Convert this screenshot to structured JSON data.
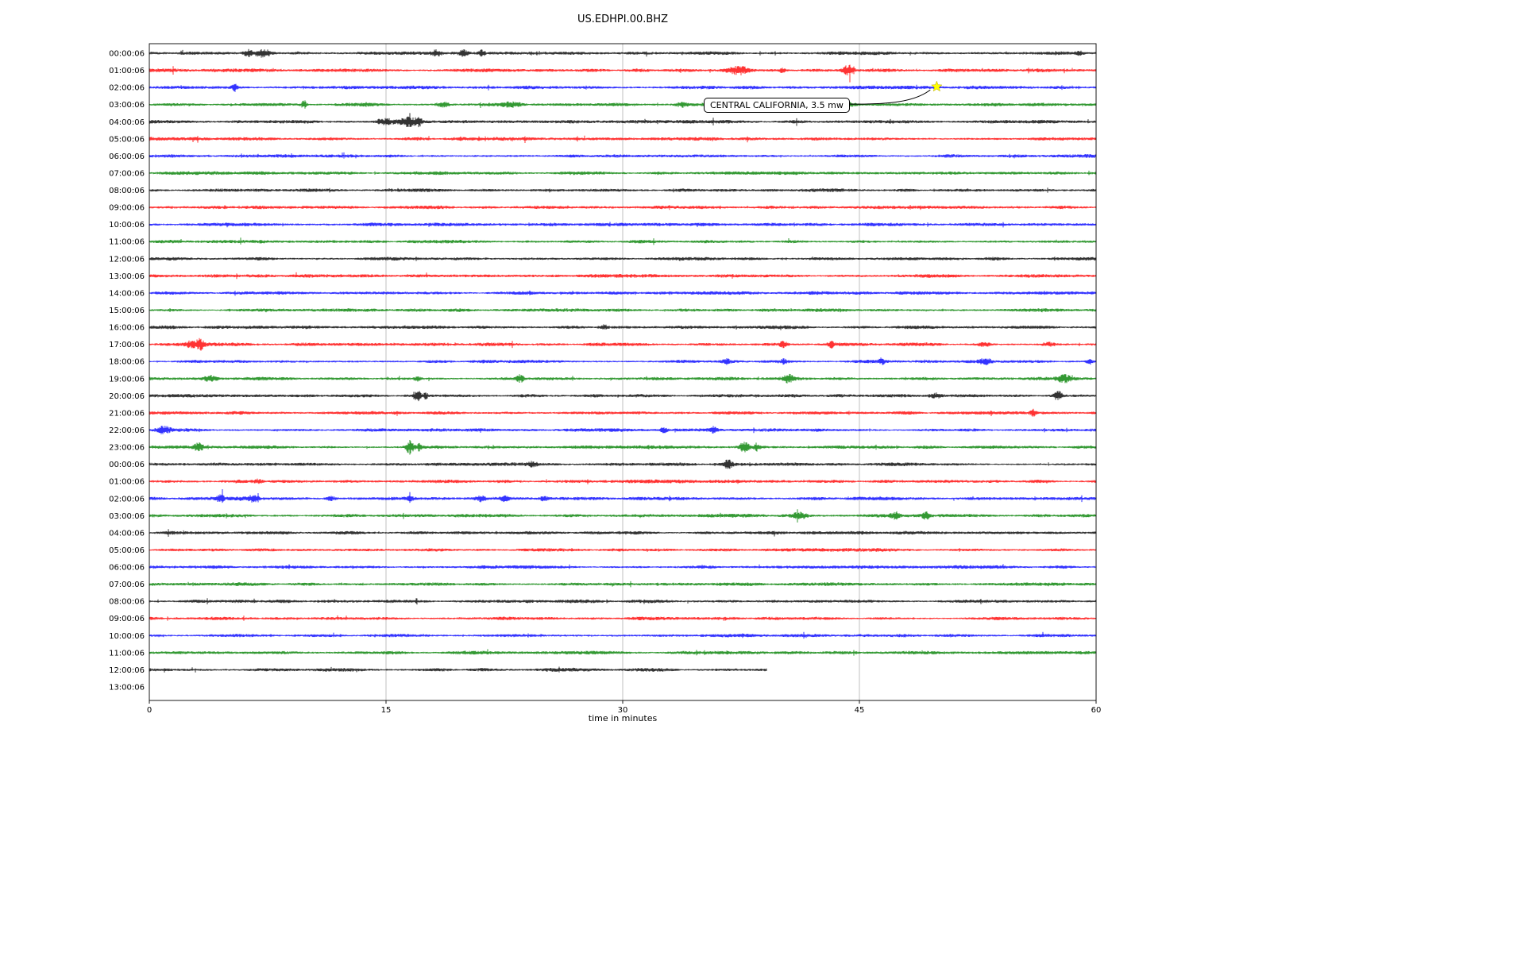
{
  "chart_data": {
    "type": "line",
    "subtype": "helicorder-dayplot",
    "title": "US.EDHPI.00.BHZ",
    "xlabel": "time in minutes",
    "x_range": [
      0,
      60
    ],
    "x_ticks": [
      0,
      15,
      30,
      45,
      60
    ],
    "grid": "vertical",
    "legend": "none",
    "trace_color_cycle": [
      "#000000",
      "#ff0000",
      "#0000ff",
      "#008000"
    ],
    "annotation": {
      "text": "CENTRAL CALIFORNIA, 3.5 mw",
      "marker": "star",
      "marker_color": "#ffff00",
      "marker_row": 2,
      "marker_minute": 49.9
    },
    "rows": [
      {
        "label": "00:00:06",
        "color": "#000000",
        "end_minute": 60,
        "bursts": [
          [
            6.3,
            4,
            0.2
          ],
          [
            7.2,
            5,
            0.3
          ],
          [
            18.2,
            4,
            0.25
          ],
          [
            19.9,
            3,
            0.15
          ],
          [
            21.1,
            4,
            0.12
          ],
          [
            59,
            2.5,
            0.2
          ]
        ]
      },
      {
        "label": "01:00:06",
        "color": "#ff0000",
        "end_minute": 60,
        "bursts": [
          [
            37.4,
            5,
            0.5
          ],
          [
            40.1,
            3,
            0.12
          ],
          [
            44.3,
            6,
            0.25
          ]
        ]
      },
      {
        "label": "02:00:06",
        "color": "#0000ff",
        "end_minute": 60,
        "bursts": [
          [
            5.4,
            5,
            0.12
          ]
        ]
      },
      {
        "label": "03:00:06",
        "color": "#008000",
        "end_minute": 60,
        "bursts": [
          [
            9.8,
            5,
            0.12
          ],
          [
            18.6,
            3,
            0.3
          ],
          [
            23,
            2.5,
            0.5
          ],
          [
            33.8,
            2.5,
            0.3
          ],
          [
            44.2,
            2.5,
            0.4
          ]
        ]
      },
      {
        "label": "04:00:06",
        "color": "#000000",
        "end_minute": 60,
        "bursts": [
          [
            15,
            3,
            0.4
          ],
          [
            16.4,
            5,
            0.35
          ],
          [
            17.1,
            4,
            0.15
          ]
        ]
      },
      {
        "label": "05:00:06",
        "color": "#ff0000",
        "end_minute": 60,
        "bursts": []
      },
      {
        "label": "06:00:06",
        "color": "#0000ff",
        "end_minute": 60,
        "bursts": []
      },
      {
        "label": "07:00:06",
        "color": "#008000",
        "end_minute": 60,
        "bursts": []
      },
      {
        "label": "08:00:06",
        "color": "#000000",
        "end_minute": 60,
        "bursts": []
      },
      {
        "label": "09:00:06",
        "color": "#ff0000",
        "end_minute": 60,
        "bursts": []
      },
      {
        "label": "10:00:06",
        "color": "#0000ff",
        "end_minute": 60,
        "bursts": []
      },
      {
        "label": "11:00:06",
        "color": "#008000",
        "end_minute": 60,
        "bursts": []
      },
      {
        "label": "12:00:06",
        "color": "#000000",
        "end_minute": 60,
        "bursts": []
      },
      {
        "label": "13:00:06",
        "color": "#ff0000",
        "end_minute": 60,
        "bursts": []
      },
      {
        "label": "14:00:06",
        "color": "#0000ff",
        "end_minute": 60,
        "bursts": []
      },
      {
        "label": "15:00:06",
        "color": "#008000",
        "end_minute": 60,
        "bursts": []
      },
      {
        "label": "16:00:06",
        "color": "#000000",
        "end_minute": 60,
        "bursts": [
          [
            28.8,
            2.5,
            0.2
          ]
        ]
      },
      {
        "label": "17:00:06",
        "color": "#ff0000",
        "end_minute": 60,
        "bursts": [
          [
            2.6,
            3,
            0.2
          ],
          [
            3.2,
            6,
            0.18
          ],
          [
            40.2,
            3.5,
            0.18
          ],
          [
            43.2,
            3.5,
            0.12
          ],
          [
            52.9,
            2.5,
            0.3
          ],
          [
            57,
            2,
            0.3
          ]
        ]
      },
      {
        "label": "18:00:06",
        "color": "#0000ff",
        "end_minute": 60,
        "bursts": [
          [
            36.6,
            2.5,
            0.18
          ],
          [
            40.2,
            2.5,
            0.18
          ],
          [
            46.4,
            3,
            0.12
          ],
          [
            53,
            3.5,
            0.3
          ],
          [
            59.6,
            3,
            0.15
          ]
        ]
      },
      {
        "label": "19:00:06",
        "color": "#008000",
        "end_minute": 60,
        "bursts": [
          [
            3.9,
            3.5,
            0.3
          ],
          [
            17,
            2.5,
            0.15
          ],
          [
            23.5,
            4,
            0.18
          ],
          [
            40.5,
            4,
            0.25
          ],
          [
            58,
            4,
            0.3
          ]
        ]
      },
      {
        "label": "20:00:06",
        "color": "#000000",
        "end_minute": 60,
        "bursts": [
          [
            17,
            7,
            0.12
          ],
          [
            17.5,
            4,
            0.1
          ],
          [
            49.8,
            3,
            0.3
          ],
          [
            57.6,
            5,
            0.22
          ]
        ]
      },
      {
        "label": "21:00:06",
        "color": "#ff0000",
        "end_minute": 60,
        "bursts": [
          [
            56,
            4,
            0.12
          ]
        ]
      },
      {
        "label": "22:00:06",
        "color": "#0000ff",
        "end_minute": 60,
        "bursts": [
          [
            0.9,
            4,
            0.3
          ],
          [
            32.6,
            3,
            0.15
          ],
          [
            35.8,
            3.5,
            0.12
          ]
        ]
      },
      {
        "label": "23:00:06",
        "color": "#008000",
        "end_minute": 60,
        "bursts": [
          [
            3.1,
            5,
            0.2
          ],
          [
            16.5,
            8,
            0.18
          ],
          [
            17.1,
            4,
            0.12
          ],
          [
            37.7,
            6,
            0.2
          ],
          [
            38.5,
            4,
            0.12
          ]
        ]
      },
      {
        "label": "00:00:06",
        "color": "#000000",
        "end_minute": 60,
        "bursts": [
          [
            24.3,
            2.5,
            0.2
          ],
          [
            36.7,
            6,
            0.15
          ]
        ]
      },
      {
        "label": "01:00:06",
        "color": "#ff0000",
        "end_minute": 60,
        "bursts": [
          [
            6.9,
            2.5,
            0.2
          ]
        ]
      },
      {
        "label": "02:00:06",
        "color": "#0000ff",
        "end_minute": 60,
        "bursts": [
          [
            4.5,
            4,
            0.18
          ],
          [
            6.6,
            3.5,
            0.3
          ],
          [
            11.5,
            2.5,
            0.2
          ],
          [
            16.5,
            2.5,
            0.2
          ],
          [
            21,
            3.5,
            0.2
          ],
          [
            22.5,
            2.5,
            0.15
          ],
          [
            25,
            2.5,
            0.15
          ]
        ]
      },
      {
        "label": "03:00:06",
        "color": "#008000",
        "end_minute": 60,
        "bursts": [
          [
            41.2,
            3.5,
            0.3
          ],
          [
            47.3,
            3.5,
            0.2
          ],
          [
            49.2,
            4,
            0.18
          ]
        ]
      },
      {
        "label": "04:00:06",
        "color": "#000000",
        "end_minute": 60,
        "bursts": []
      },
      {
        "label": "05:00:06",
        "color": "#ff0000",
        "end_minute": 60,
        "bursts": []
      },
      {
        "label": "06:00:06",
        "color": "#0000ff",
        "end_minute": 60,
        "bursts": []
      },
      {
        "label": "07:00:06",
        "color": "#008000",
        "end_minute": 60,
        "bursts": []
      },
      {
        "label": "08:00:06",
        "color": "#000000",
        "end_minute": 60,
        "bursts": []
      },
      {
        "label": "09:00:06",
        "color": "#ff0000",
        "end_minute": 60,
        "bursts": []
      },
      {
        "label": "10:00:06",
        "color": "#0000ff",
        "end_minute": 60,
        "bursts": []
      },
      {
        "label": "11:00:06",
        "color": "#008000",
        "end_minute": 60,
        "bursts": []
      },
      {
        "label": "12:00:06",
        "color": "#000000",
        "end_minute": 39.1,
        "bursts": []
      },
      {
        "label": "13:00:06",
        "color": "#ff0000",
        "end_minute": 0,
        "bursts": []
      }
    ]
  }
}
